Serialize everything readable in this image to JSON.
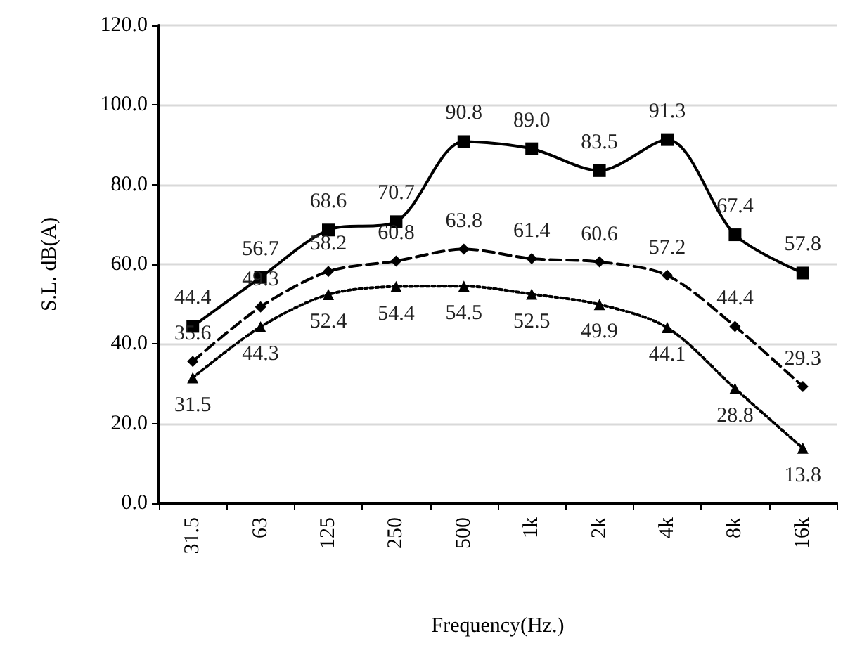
{
  "chart_data": {
    "type": "line",
    "xlabel": "Frequency(Hz.)",
    "ylabel": "S.L. dB(A)",
    "categories": [
      "31.5",
      "63",
      "125",
      "250",
      "500",
      "1k",
      "2k",
      "4k",
      "8k",
      "16k"
    ],
    "ylim": [
      0,
      120
    ],
    "yticks": [
      {
        "value": 0,
        "label": "0.0"
      },
      {
        "value": 20,
        "label": "20.0"
      },
      {
        "value": 40,
        "label": "40.0"
      },
      {
        "value": 60,
        "label": "60.0"
      },
      {
        "value": 80,
        "label": "80.0"
      },
      {
        "value": 100,
        "label": "100.0"
      },
      {
        "value": 120,
        "label": "120.0"
      }
    ],
    "grid": "y",
    "series": [
      {
        "color": "#000000",
        "marker": "square",
        "line_style": "solid",
        "values": [
          44.4,
          56.7,
          68.6,
          70.7,
          90.8,
          89.0,
          83.5,
          91.3,
          67.4,
          57.8
        ],
        "value_labels": [
          "44.4",
          "56.7",
          "68.6",
          "70.7",
          "90.8",
          "89.0",
          "83.5",
          "91.3",
          "67.4",
          "57.8"
        ]
      },
      {
        "color": "#000000",
        "marker": "diamond",
        "line_style": "dashed",
        "values": [
          35.6,
          49.3,
          58.2,
          60.8,
          63.8,
          61.4,
          60.6,
          57.2,
          44.4,
          29.3
        ],
        "value_labels": [
          "35.6",
          "49.3",
          "58.2",
          "60.8",
          "63.8",
          "61.4",
          "60.6",
          "57.2",
          "44.4",
          "29.3"
        ]
      },
      {
        "color": "#000000",
        "marker": "triangle",
        "line_style": "dotted",
        "values": [
          31.5,
          44.3,
          52.4,
          54.4,
          54.5,
          52.5,
          49.9,
          44.1,
          28.8,
          13.8
        ],
        "value_labels": [
          "31.5",
          "44.3",
          "52.4",
          "54.4",
          "54.5",
          "52.5",
          "49.9",
          "44.1",
          "28.8",
          "13.8"
        ]
      }
    ]
  }
}
